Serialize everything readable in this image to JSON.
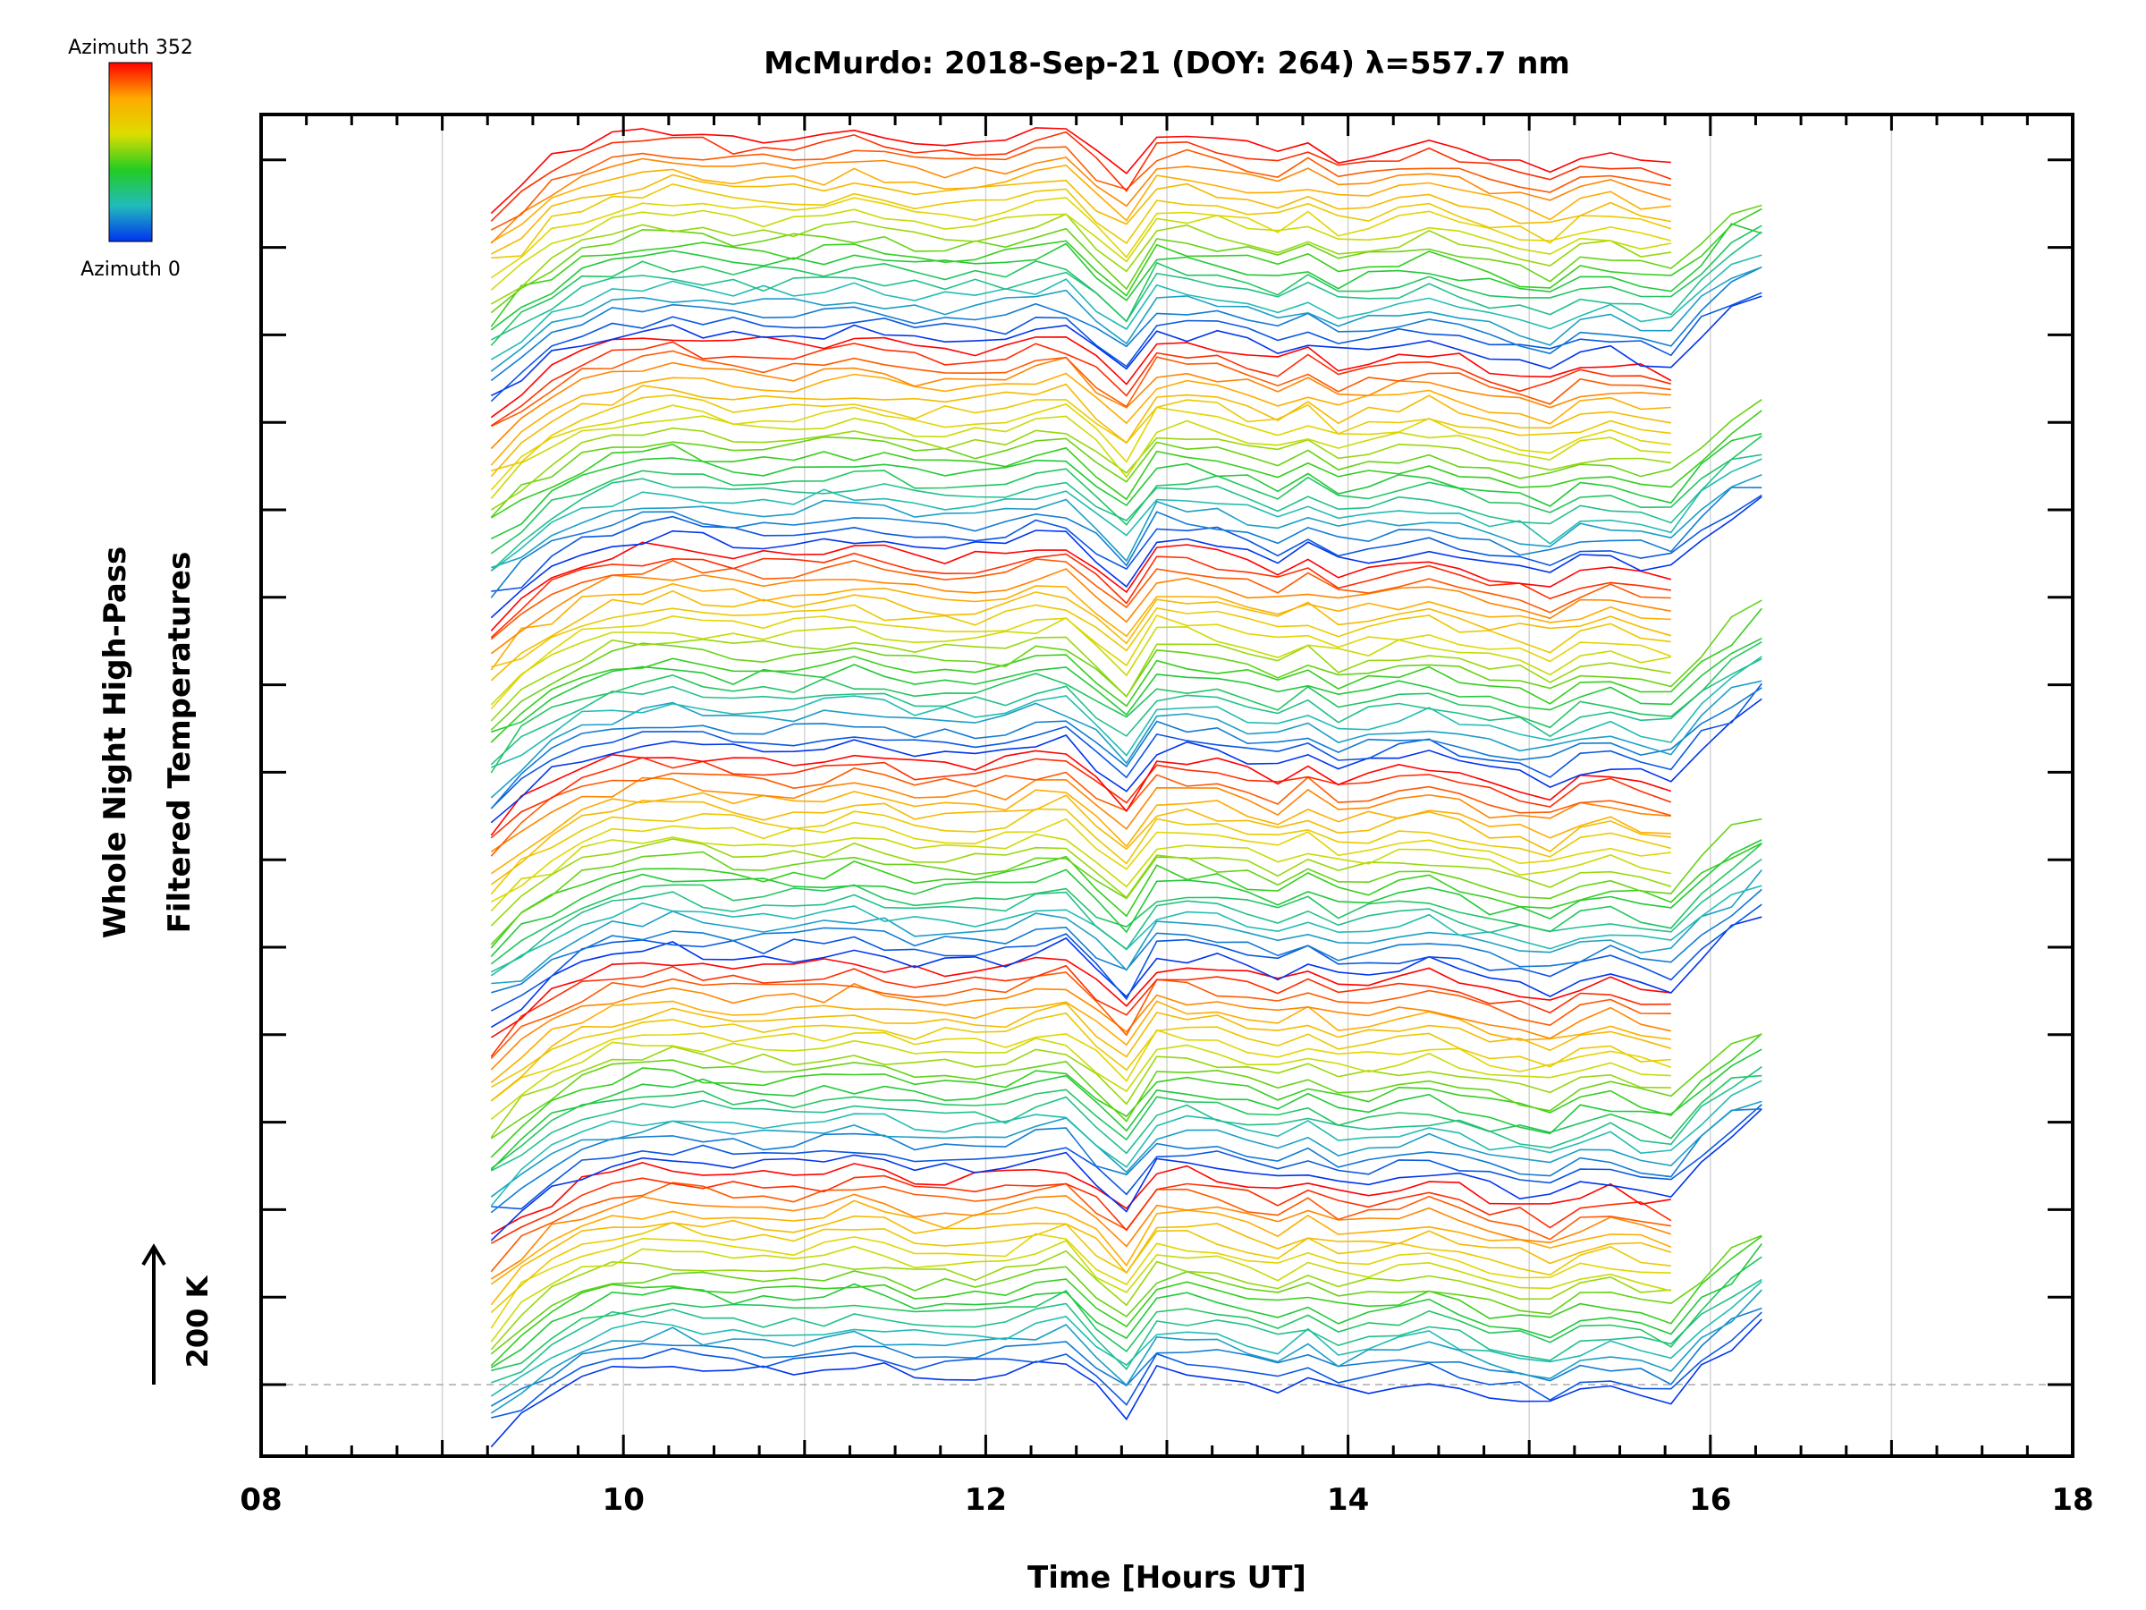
{
  "chart_data": {
    "type": "line",
    "title": "McMurdo: 2018-Sep-21 (DOY: 264) λ=557.7 nm",
    "xlabel": "Time [Hours UT]",
    "ylabel_line1": "Whole Night High-Pass",
    "ylabel_line2": "Filtered Temperatures",
    "xlim": [
      8,
      18
    ],
    "x_ticks": [
      8,
      10,
      12,
      14,
      16,
      18
    ],
    "x_tick_labels": [
      "08",
      "10",
      "12",
      "14",
      "16",
      "18"
    ],
    "x_minor_step": 0.25,
    "x_grid": [
      9,
      10,
      11,
      12,
      13,
      14,
      15,
      16,
      17
    ],
    "y_tick_count": 15,
    "scale_bar_label": "200 K",
    "colorbar": {
      "top_label": "Azimuth 352",
      "bottom_label": "Azimuth 0",
      "colors": [
        "#ff0000",
        "#ffaa00",
        "#dddd00",
        "#22cc22",
        "#22bbbb",
        "#0033ee"
      ]
    },
    "n_traces": 120,
    "traces_per_group": 20,
    "time_start": 9.27,
    "time_end": 16.4,
    "time_step": 0.167,
    "trace_offset_units": 1.0,
    "common_shape": [
      [
        9.27,
        -7
      ],
      [
        9.5,
        -3
      ],
      [
        9.7,
        0
      ],
      [
        10.0,
        2
      ],
      [
        10.3,
        2.5
      ],
      [
        10.6,
        1.5
      ],
      [
        11.0,
        1.5
      ],
      [
        11.3,
        2.5
      ],
      [
        11.6,
        1
      ],
      [
        12.0,
        1
      ],
      [
        12.2,
        1.5
      ],
      [
        12.4,
        4
      ],
      [
        12.5,
        1
      ],
      [
        12.65,
        -1
      ],
      [
        12.8,
        -4
      ],
      [
        12.95,
        2
      ],
      [
        13.2,
        1.5
      ],
      [
        13.4,
        1
      ],
      [
        13.55,
        -1
      ],
      [
        13.7,
        0
      ],
      [
        13.85,
        2
      ],
      [
        13.95,
        -1
      ],
      [
        14.2,
        0
      ],
      [
        14.5,
        1
      ],
      [
        14.7,
        -1
      ],
      [
        15.0,
        -2
      ],
      [
        15.2,
        -3
      ],
      [
        15.35,
        1
      ],
      [
        15.5,
        -1
      ],
      [
        15.8,
        -2
      ],
      [
        16.0,
        3
      ],
      [
        16.2,
        6
      ],
      [
        16.4,
        8
      ]
    ]
  }
}
